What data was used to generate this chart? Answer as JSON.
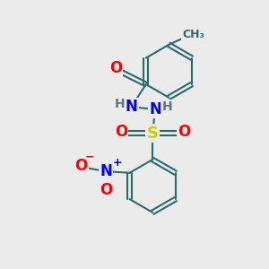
{
  "bg_color": "#ebebeb",
  "bond_color": "#2d6b6b",
  "bond_width": 1.5,
  "atom_colors": {
    "O": "#ff0000",
    "N": "#0000ff",
    "S": "#cccc00",
    "H": "#5a7a7a",
    "C": "#2d6b6b",
    "CH3": "#2d6b6b"
  },
  "font_size": 11
}
